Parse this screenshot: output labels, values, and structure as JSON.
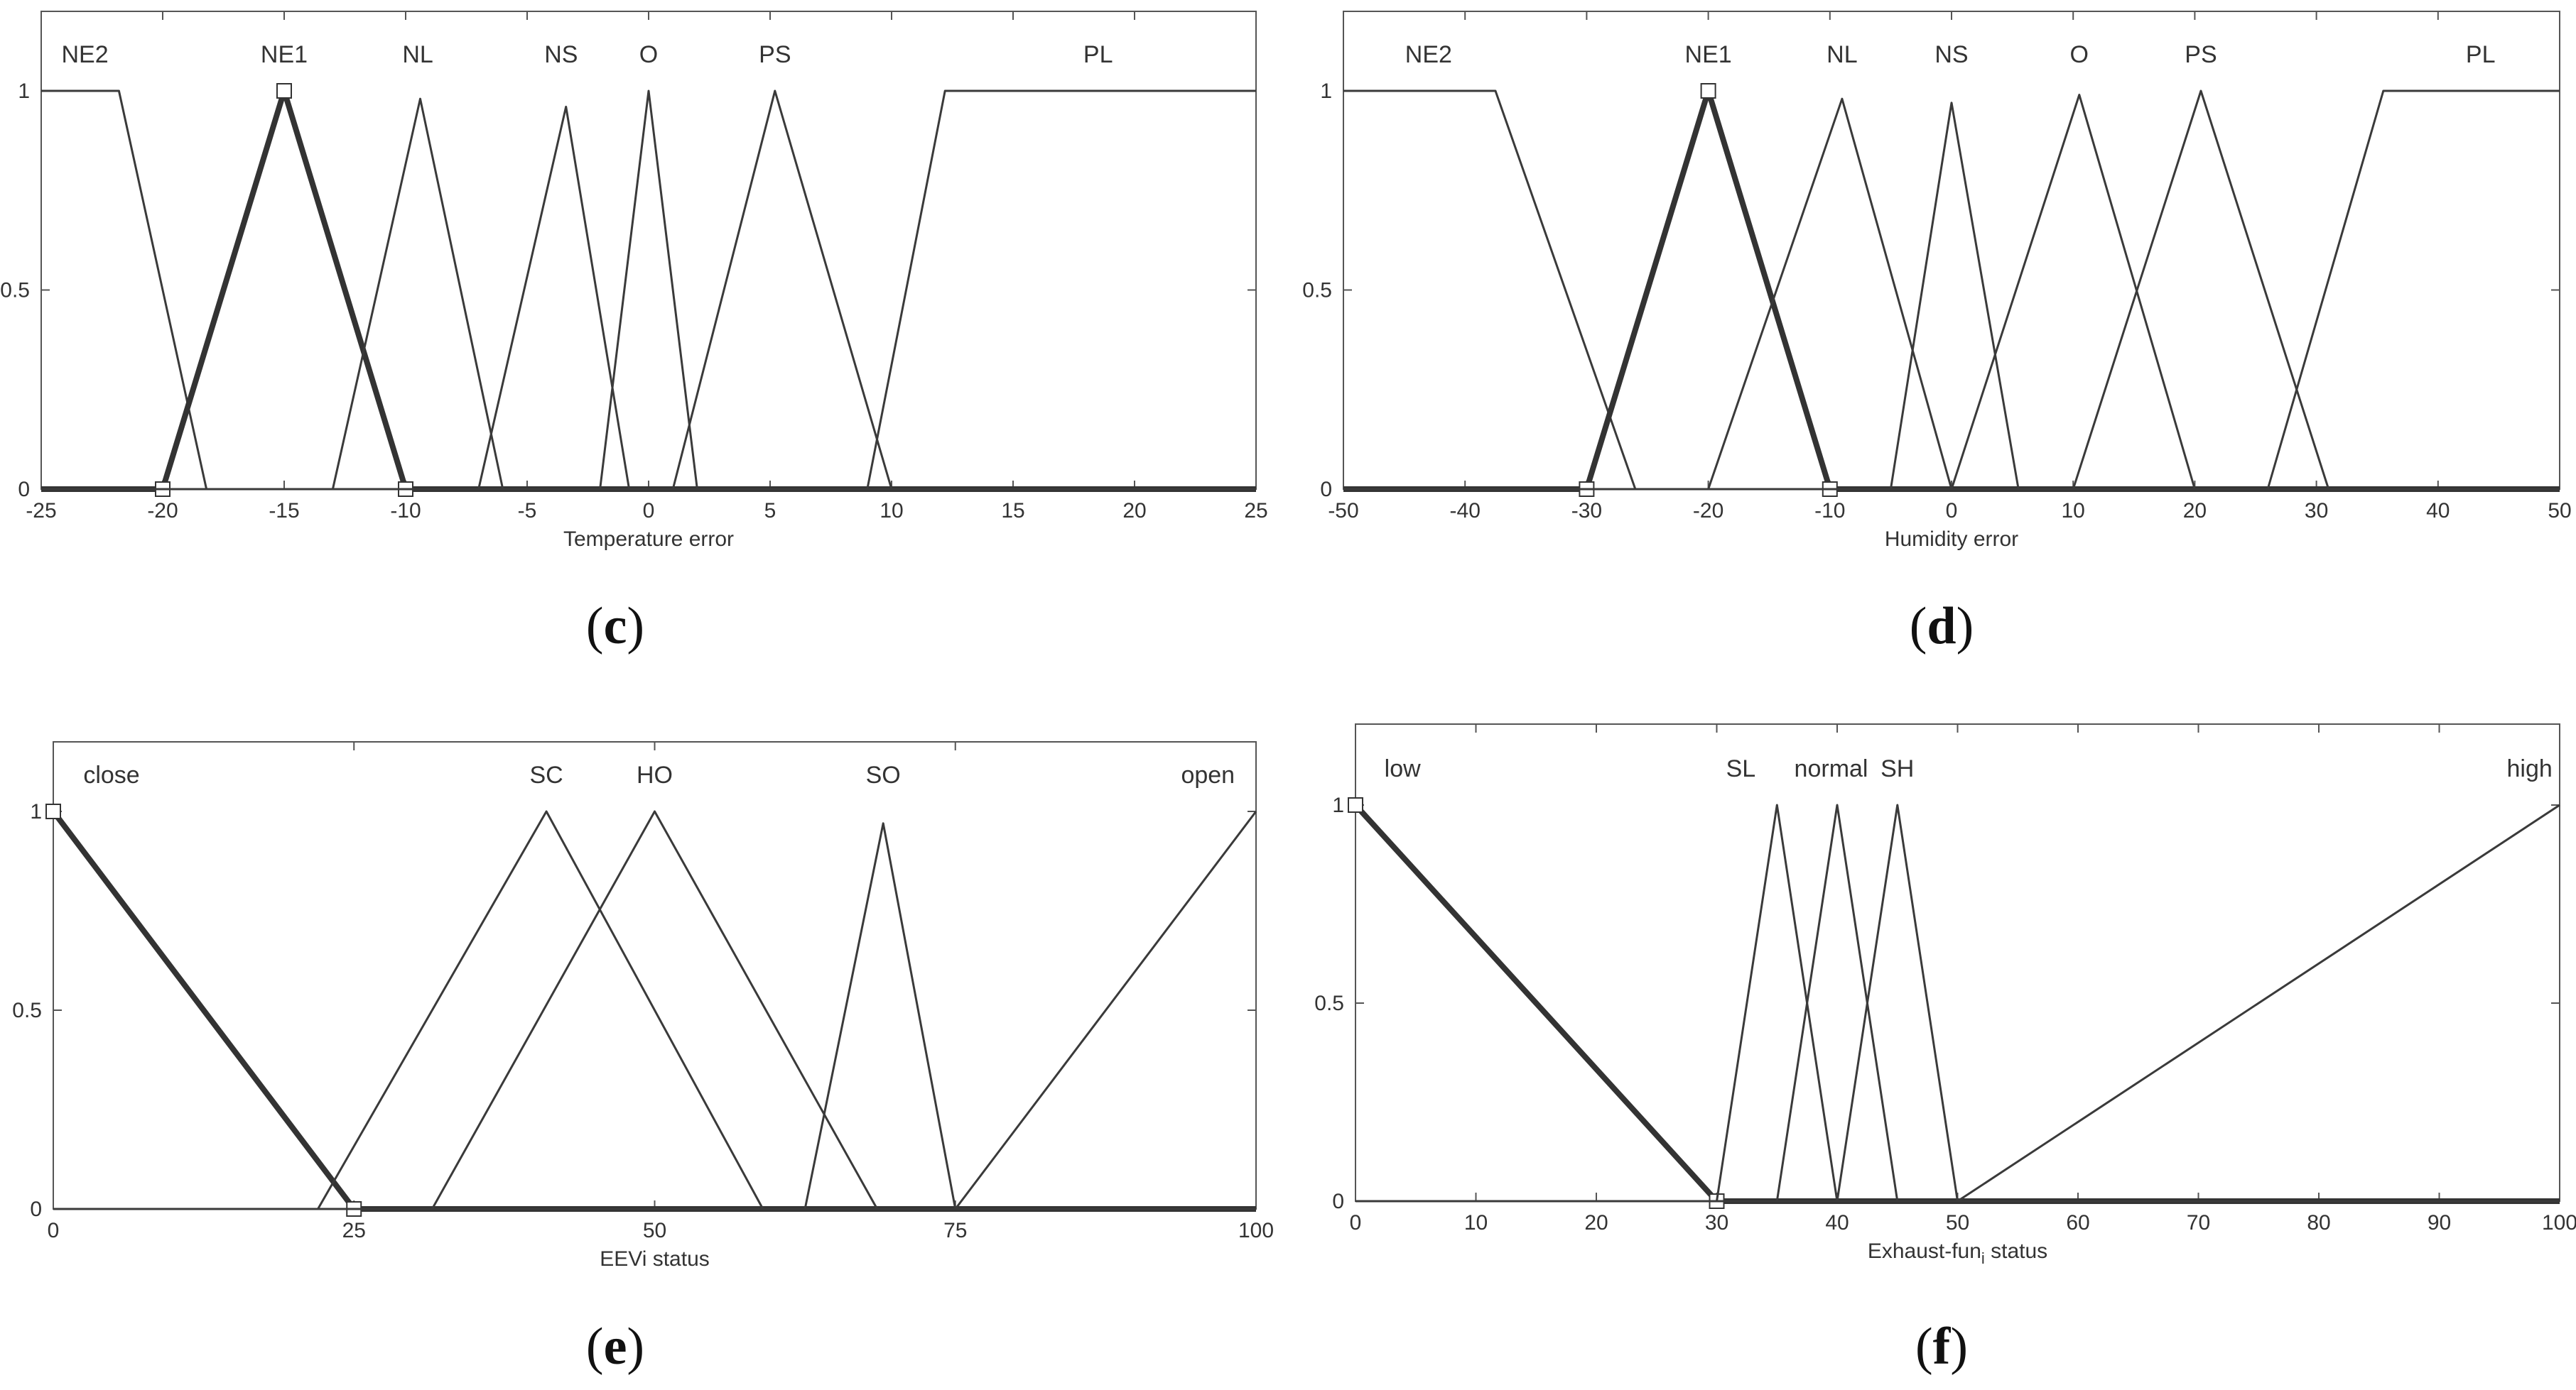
{
  "captions": {
    "c": "c",
    "d": "d",
    "e": "e",
    "f": "f"
  },
  "chart_data": [
    {
      "id": "c",
      "type": "line",
      "title": "",
      "xlabel": "Temperature error",
      "ylabel": "",
      "xlim": [
        -25,
        25
      ],
      "ylim": [
        0,
        1
      ],
      "xticks": [
        -25,
        -20,
        -15,
        -10,
        -5,
        0,
        5,
        10,
        15,
        20,
        25
      ],
      "yticks": [
        0,
        0.5,
        1
      ],
      "ytick_labels": [
        "0",
        "0.5",
        "1"
      ],
      "grid": false,
      "highlight": "NE1",
      "series": [
        {
          "name": "NE2",
          "x": [
            -25,
            -21.8,
            -18.2,
            -17.6,
            25
          ],
          "y": [
            1,
            1,
            0,
            0,
            0
          ]
        },
        {
          "name": "NE1",
          "x": [
            -25,
            -20,
            -15,
            -10,
            25
          ],
          "y": [
            0,
            0,
            1,
            0,
            0
          ]
        },
        {
          "name": "NL",
          "x": [
            -25,
            -13,
            -9.4,
            -6,
            25
          ],
          "y": [
            0,
            0,
            0.98,
            0,
            0
          ]
        },
        {
          "name": "NS",
          "x": [
            -25,
            -7,
            -3.4,
            -0.8,
            25
          ],
          "y": [
            0,
            0,
            0.96,
            0,
            0
          ]
        },
        {
          "name": "O",
          "x": [
            -25,
            -2,
            0,
            2,
            25
          ],
          "y": [
            0,
            0,
            1,
            0,
            0
          ]
        },
        {
          "name": "PS",
          "x": [
            -25,
            1,
            5.2,
            10,
            25
          ],
          "y": [
            0,
            0,
            1,
            0,
            0
          ]
        },
        {
          "name": "PL",
          "x": [
            -25,
            9,
            12.2,
            25
          ],
          "y": [
            0,
            0,
            1,
            1
          ]
        }
      ],
      "series_labels": [
        {
          "text": "NE2",
          "x": -23.2
        },
        {
          "text": "NE1",
          "x": -15
        },
        {
          "text": "NL",
          "x": -9.5
        },
        {
          "text": "NS",
          "x": -3.6
        },
        {
          "text": "O",
          "x": 0
        },
        {
          "text": "PS",
          "x": 5.2
        },
        {
          "text": "PL",
          "x": 18.5
        }
      ]
    },
    {
      "id": "d",
      "type": "line",
      "title": "",
      "xlabel": "Humidity error",
      "ylabel": "",
      "xlim": [
        -50,
        50
      ],
      "ylim": [
        0,
        1
      ],
      "xticks": [
        -50,
        -40,
        -30,
        -20,
        -10,
        0,
        10,
        20,
        30,
        40,
        50
      ],
      "yticks": [
        0,
        0.5,
        1
      ],
      "ytick_labels": [
        "0",
        "0.5",
        "1"
      ],
      "grid": false,
      "highlight": "NE1",
      "series": [
        {
          "name": "NE2",
          "x": [
            -50,
            -37.5,
            -26,
            50
          ],
          "y": [
            1,
            1,
            0,
            0
          ]
        },
        {
          "name": "NE1",
          "x": [
            -50,
            -30,
            -20,
            -10,
            50
          ],
          "y": [
            0,
            0,
            1,
            0,
            0
          ]
        },
        {
          "name": "NL",
          "x": [
            -50,
            -20,
            -9,
            0,
            50
          ],
          "y": [
            0,
            0,
            0.98,
            0,
            0
          ]
        },
        {
          "name": "NS",
          "x": [
            -50,
            -5,
            0,
            5.5,
            50
          ],
          "y": [
            0,
            0,
            0.97,
            0,
            0
          ]
        },
        {
          "name": "O",
          "x": [
            -50,
            0,
            10.5,
            20,
            50
          ],
          "y": [
            0,
            0,
            0.99,
            0,
            0
          ]
        },
        {
          "name": "PS",
          "x": [
            -50,
            10,
            20.5,
            31,
            50
          ],
          "y": [
            0,
            0,
            1,
            0,
            0
          ]
        },
        {
          "name": "PL",
          "x": [
            -50,
            26,
            35.5,
            50
          ],
          "y": [
            0,
            0,
            1,
            1
          ]
        }
      ],
      "series_labels": [
        {
          "text": "NE2",
          "x": -43
        },
        {
          "text": "NE1",
          "x": -20
        },
        {
          "text": "NL",
          "x": -9
        },
        {
          "text": "NS",
          "x": 0
        },
        {
          "text": "O",
          "x": 10.5
        },
        {
          "text": "PS",
          "x": 20.5
        },
        {
          "text": "PL",
          "x": 43.5
        }
      ]
    },
    {
      "id": "e",
      "type": "line",
      "title": "",
      "xlabel": "EEVi status",
      "ylabel": "",
      "xlim": [
        0,
        100
      ],
      "ylim": [
        0,
        1
      ],
      "xticks": [
        0,
        25,
        50,
        75,
        100
      ],
      "yticks": [
        0,
        0.5,
        1
      ],
      "ytick_labels": [
        "0",
        "0.5",
        "1"
      ],
      "grid": false,
      "highlight": "close",
      "series": [
        {
          "name": "close",
          "x": [
            0,
            25,
            100
          ],
          "y": [
            1,
            0,
            0
          ]
        },
        {
          "name": "SC",
          "x": [
            0,
            22,
            41,
            59,
            100
          ],
          "y": [
            0,
            0,
            1,
            0,
            0
          ]
        },
        {
          "name": "HO",
          "x": [
            0,
            31.5,
            50,
            68.5,
            100
          ],
          "y": [
            0,
            0,
            1,
            0,
            0
          ]
        },
        {
          "name": "SO",
          "x": [
            0,
            62.5,
            69,
            75,
            100
          ],
          "y": [
            0,
            0,
            0.97,
            0,
            0
          ]
        },
        {
          "name": "open",
          "x": [
            0,
            75,
            100
          ],
          "y": [
            0,
            0,
            1
          ]
        }
      ],
      "series_labels": [
        {
          "text": "close",
          "x": 2.5,
          "anchor": "start"
        },
        {
          "text": "SC",
          "x": 41
        },
        {
          "text": "HO",
          "x": 50
        },
        {
          "text": "SO",
          "x": 69
        },
        {
          "text": "open",
          "x": 96
        }
      ]
    },
    {
      "id": "f",
      "type": "line",
      "title": "",
      "xlabel": "Exhaust-fun",
      "xlabel_sub": "i",
      "xlabel_tail": " status",
      "ylabel": "",
      "xlim": [
        0,
        100
      ],
      "ylim": [
        0,
        1
      ],
      "xticks": [
        0,
        10,
        20,
        30,
        40,
        50,
        60,
        70,
        80,
        90,
        100
      ],
      "yticks": [
        0,
        0.5,
        1
      ],
      "ytick_labels": [
        "0",
        "0.5",
        "1"
      ],
      "grid": false,
      "highlight": "low",
      "series": [
        {
          "name": "low",
          "x": [
            0,
            30,
            100
          ],
          "y": [
            1,
            0,
            0
          ]
        },
        {
          "name": "SL",
          "x": [
            0,
            30,
            35,
            40,
            100
          ],
          "y": [
            0,
            0,
            1,
            0,
            0
          ]
        },
        {
          "name": "normal",
          "x": [
            0,
            35,
            40,
            45,
            100
          ],
          "y": [
            0,
            0,
            1,
            0,
            0
          ]
        },
        {
          "name": "SH",
          "x": [
            0,
            40,
            45,
            50,
            100
          ],
          "y": [
            0,
            0,
            1,
            0,
            0
          ]
        },
        {
          "name": "high",
          "x": [
            0,
            50,
            100
          ],
          "y": [
            0,
            0,
            1
          ]
        }
      ],
      "series_labels": [
        {
          "text": "low",
          "x": 2.4,
          "anchor": "start"
        },
        {
          "text": "SL",
          "x": 32
        },
        {
          "text": "normal",
          "x": 39.5
        },
        {
          "text": "SH",
          "x": 45
        },
        {
          "text": "high",
          "x": 97.5
        }
      ]
    }
  ]
}
